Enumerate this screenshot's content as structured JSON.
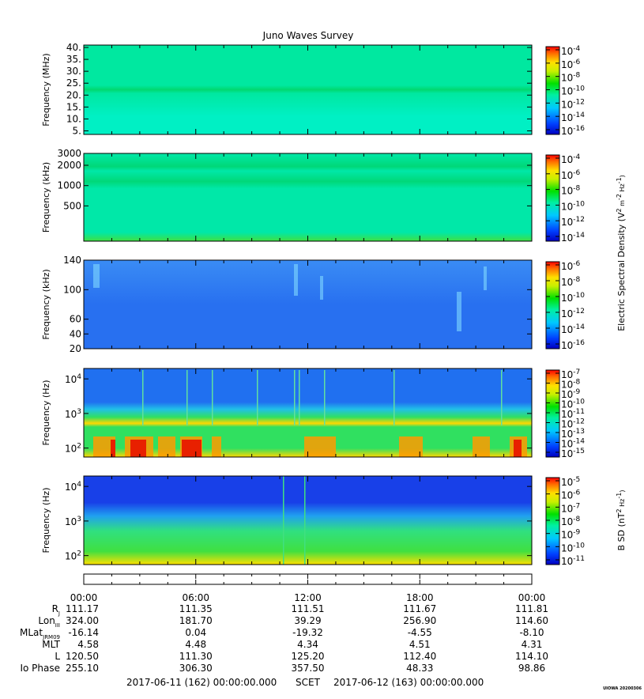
{
  "title": "Juno Waves Survey",
  "footer": {
    "logo": "UIOWA 20200306"
  },
  "chart_data": [
    {
      "type": "heatmap",
      "name": "panel-1",
      "ylabel": "Frequency (MHz)",
      "yscale": "linear",
      "ylim": [
        3.5,
        41
      ],
      "yticks": [
        "40.",
        "35.",
        "30.",
        "25.",
        "20.",
        "15.",
        "10.",
        "5."
      ],
      "ytick_values": [
        40,
        35,
        30,
        25,
        20,
        15,
        10,
        5
      ],
      "colorbar": {
        "ticks": [
          {
            "base": "10",
            "exp": "-4"
          },
          {
            "base": "10",
            "exp": "-6"
          },
          {
            "base": "10",
            "exp": "-8"
          },
          {
            "base": "10",
            "exp": "-10"
          },
          {
            "base": "10",
            "exp": "-12"
          },
          {
            "base": "10",
            "exp": "-14"
          },
          {
            "base": "10",
            "exp": "-16"
          }
        ]
      },
      "colors": [
        "#00e8a0",
        "#00f0c4",
        "#00d870"
      ]
    },
    {
      "type": "heatmap",
      "name": "panel-2",
      "ylabel": "Frequency (kHz)",
      "yscale": "log",
      "ylim": [
        150,
        3000
      ],
      "yticks": [
        "3000",
        "2000",
        "1000",
        "500"
      ],
      "ytick_values": [
        3000,
        2000,
        1000,
        500
      ],
      "colorbar": {
        "ticks": [
          {
            "base": "10",
            "exp": "-4"
          },
          {
            "base": "10",
            "exp": "-6"
          },
          {
            "base": "10",
            "exp": "-8"
          },
          {
            "base": "10",
            "exp": "-10"
          },
          {
            "base": "10",
            "exp": "-12"
          },
          {
            "base": "10",
            "exp": "-14"
          }
        ]
      },
      "colors": [
        "#00e8a8",
        "#00d878",
        "#40e040"
      ]
    },
    {
      "type": "heatmap",
      "name": "panel-3",
      "ylabel": "Frequency (kHz)",
      "yscale": "linear",
      "ylim": [
        20,
        140
      ],
      "yticks": [
        "140",
        "100",
        "60",
        "40",
        "20"
      ],
      "ytick_values": [
        140,
        100,
        60,
        40,
        20
      ],
      "colorbar": {
        "ticks": [
          {
            "base": "10",
            "exp": "-6"
          },
          {
            "base": "10",
            "exp": "-8"
          },
          {
            "base": "10",
            "exp": "-10"
          },
          {
            "base": "10",
            "exp": "-12"
          },
          {
            "base": "10",
            "exp": "-14"
          },
          {
            "base": "10",
            "exp": "-16"
          }
        ]
      },
      "colors": [
        "#2870f0",
        "#3a8cf4",
        "#60c8f0"
      ]
    },
    {
      "type": "heatmap",
      "name": "panel-4",
      "ylabel": "Frequency (Hz)",
      "yscale": "log",
      "ylim": [
        55,
        20000
      ],
      "yticks": [
        {
          "base": "10",
          "exp": "4",
          "v": 10000
        },
        {
          "base": "10",
          "exp": "3",
          "v": 1000
        },
        {
          "base": "10",
          "exp": "2",
          "v": 100
        }
      ],
      "colorbar": {
        "ticks": [
          {
            "base": "10",
            "exp": "-7"
          },
          {
            "base": "10",
            "exp": "-8"
          },
          {
            "base": "10",
            "exp": "-9"
          },
          {
            "base": "10",
            "exp": "-10"
          },
          {
            "base": "10",
            "exp": "-11"
          },
          {
            "base": "10",
            "exp": "-12"
          },
          {
            "base": "10",
            "exp": "-13"
          },
          {
            "base": "10",
            "exp": "-14"
          },
          {
            "base": "10",
            "exp": "-15"
          }
        ]
      },
      "colors": [
        "#2070f0",
        "#20c0e8",
        "#30e060",
        "#ffd800",
        "#ff3000"
      ]
    },
    {
      "type": "heatmap",
      "name": "panel-5",
      "ylabel": "Frequency (Hz)",
      "yscale": "log",
      "ylim": [
        55,
        20000
      ],
      "yticks": [
        {
          "base": "10",
          "exp": "4",
          "v": 10000
        },
        {
          "base": "10",
          "exp": "3",
          "v": 1000
        },
        {
          "base": "10",
          "exp": "2",
          "v": 100
        }
      ],
      "colorbar": {
        "ticks": [
          {
            "base": "10",
            "exp": "-5"
          },
          {
            "base": "10",
            "exp": "-6"
          },
          {
            "base": "10",
            "exp": "-7"
          },
          {
            "base": "10",
            "exp": "-8"
          },
          {
            "base": "10",
            "exp": "-9"
          },
          {
            "base": "10",
            "exp": "-10"
          },
          {
            "base": "10",
            "exp": "-11"
          }
        ]
      },
      "colors": [
        "#1840e8",
        "#20a0f0",
        "#30e080",
        "#40e040",
        "#ffe000"
      ]
    }
  ],
  "colorbar_labels": {
    "electric": {
      "pre": "Electric Spectral Density (V",
      "e1": "2",
      "mid": " m",
      "e2": "-2",
      "mid2": " Hz",
      "e3": "-1",
      "post": ")"
    },
    "magnetic": {
      "pre": "B SD (nT",
      "e1": "2",
      "mid": " Hz",
      "e2": "-1",
      "post": ")"
    }
  },
  "time_axis": {
    "ticks": [
      "00:00",
      "06:00",
      "12:00",
      "18:00",
      "00:00"
    ],
    "rows": [
      {
        "label": "R",
        "sub": "J",
        "values": [
          "111.17",
          "111.35",
          "111.51",
          "111.67",
          "111.81"
        ]
      },
      {
        "label": "Lon",
        "sub": "III",
        "values": [
          "324.00",
          "181.70",
          "39.29",
          "256.90",
          "114.60"
        ]
      },
      {
        "label": "MLat",
        "sub": "JRM09",
        "values": [
          "-16.14",
          "0.04",
          "-19.32",
          "-4.55",
          "-8.10"
        ]
      },
      {
        "label": "MLT",
        "sub": "",
        "values": [
          "4.58",
          "4.48",
          "4.34",
          "4.51",
          "4.31"
        ]
      },
      {
        "label": "L",
        "sub": "",
        "values": [
          "120.50",
          "111.30",
          "125.20",
          "112.40",
          "114.10"
        ]
      },
      {
        "label": "Io Phase",
        "sub": "",
        "values": [
          "255.10",
          "306.30",
          "357.50",
          "48.33",
          "98.86"
        ]
      }
    ],
    "range": {
      "start": "2017-06-11 (162) 00:00:00.000",
      "label": "SCET",
      "end": "2017-06-12 (163) 00:00:00.000"
    }
  }
}
